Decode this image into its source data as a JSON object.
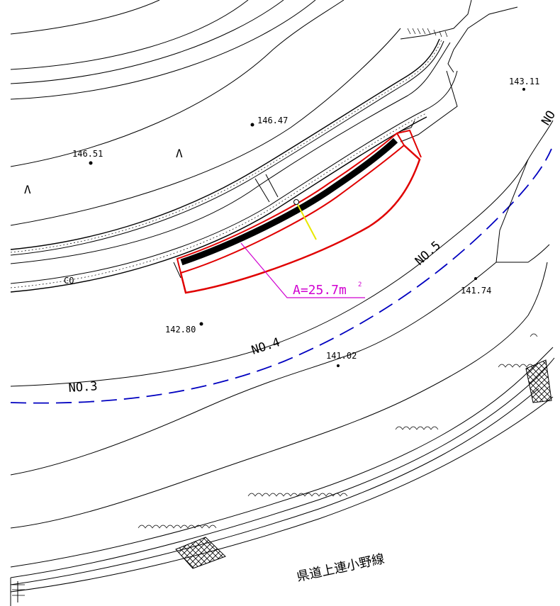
{
  "stations": [
    "NO.3",
    "NO.4",
    "NO.5",
    "NO"
  ],
  "elevations": [
    "146.47",
    "146.51",
    "143.11",
    "142.80",
    "141.74",
    "141.02"
  ],
  "area_label": "A=25.7m",
  "area_unit_sup": "2",
  "road_name": "県道上連小野線",
  "symbols": {
    "grass_1": "Λ",
    "grass_2": "Λ",
    "culvert": "CO"
  },
  "colors": {
    "area_outline": "#e00000",
    "leader": "#d000d0",
    "centerline": "#0000c0",
    "section": "#e8e800",
    "linework": "#000000"
  }
}
